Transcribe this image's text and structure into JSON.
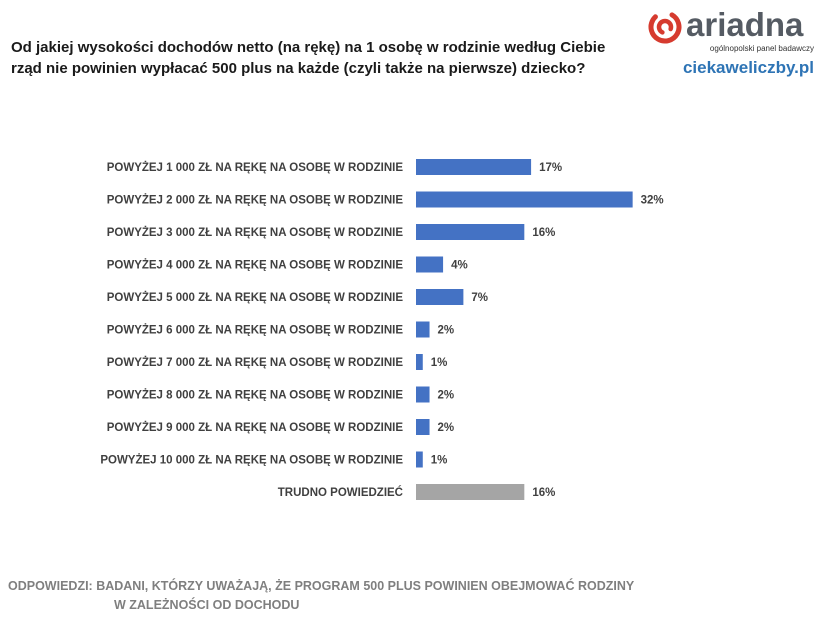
{
  "question": {
    "line1": "Od jakiej wysokości dochodów netto (na rękę) na 1 osobę w rodzinie według Ciebie",
    "line2": "rząd nie powinien wypłacać 500 plus na każde (czyli także na pierwsze) dziecko?"
  },
  "brand": {
    "logo_text": "ariadna",
    "logo_subtitle": "ogólnopolski panel badawczy",
    "site": "ciekaweliczby.pl",
    "logo_color": "#d63b2f",
    "site_color": "#2e74b5"
  },
  "chart_data": {
    "type": "bar",
    "orientation": "horizontal",
    "categories": [
      "POWYŻEJ 1 000 ZŁ NA RĘKĘ NA OSOBĘ W RODZINIE",
      "POWYŻEJ 2 000 ZŁ NA RĘKĘ NA OSOBĘ W RODZINIE",
      "POWYŻEJ 3 000  ZŁ NA RĘKĘ NA OSOBĘ W RODZINIE",
      "POWYŻEJ 4 000 ZŁ NA RĘKĘ NA OSOBĘ W RODZINIE",
      "POWYŻEJ 5 000 ZŁ NA RĘKĘ NA OSOBĘ W RODZINIE",
      "POWYŻEJ 6 000 ZŁ NA RĘKĘ NA OSOBĘ W RODZINIE",
      "POWYŻEJ 7 000 ZŁ NA RĘKĘ NA OSOBĘ W RODZINIE",
      "POWYŻEJ 8 000 ZŁ NA RĘKĘ NA OSOBĘ W RODZINIE",
      "POWYŻEJ 9 000 ZŁ NA RĘKĘ NA OSOBĘ W RODZINIE",
      "POWYŻEJ 10  000 ZŁ NA RĘKĘ NA OSOBĘ W RODZINIE",
      "TRUDNO POWIEDZIEĆ"
    ],
    "values": [
      17,
      32,
      16,
      4,
      7,
      2,
      1,
      2,
      2,
      1,
      16
    ],
    "value_labels": [
      "17%",
      "32%",
      "16%",
      "4%",
      "7%",
      "2%",
      "1%",
      "2%",
      "2%",
      "1%",
      "16%"
    ],
    "unit": "%",
    "bar_colors": [
      "#4472c4",
      "#4472c4",
      "#4472c4",
      "#4472c4",
      "#4472c4",
      "#4472c4",
      "#4472c4",
      "#4472c4",
      "#4472c4",
      "#4472c4",
      "#a5a5a5"
    ],
    "xlim": [
      0,
      35
    ],
    "grid": false,
    "legend": "none"
  },
  "footer": {
    "line1": "ODPOWIEDZI:  BADANI, KTÓRZY UWAŻAJĄ, ŻE PROGRAM 500 PLUS POWINIEN OBEJMOWAĆ RODZINY",
    "line2": "W ZALEŻNOŚCI OD DOCHODU"
  }
}
